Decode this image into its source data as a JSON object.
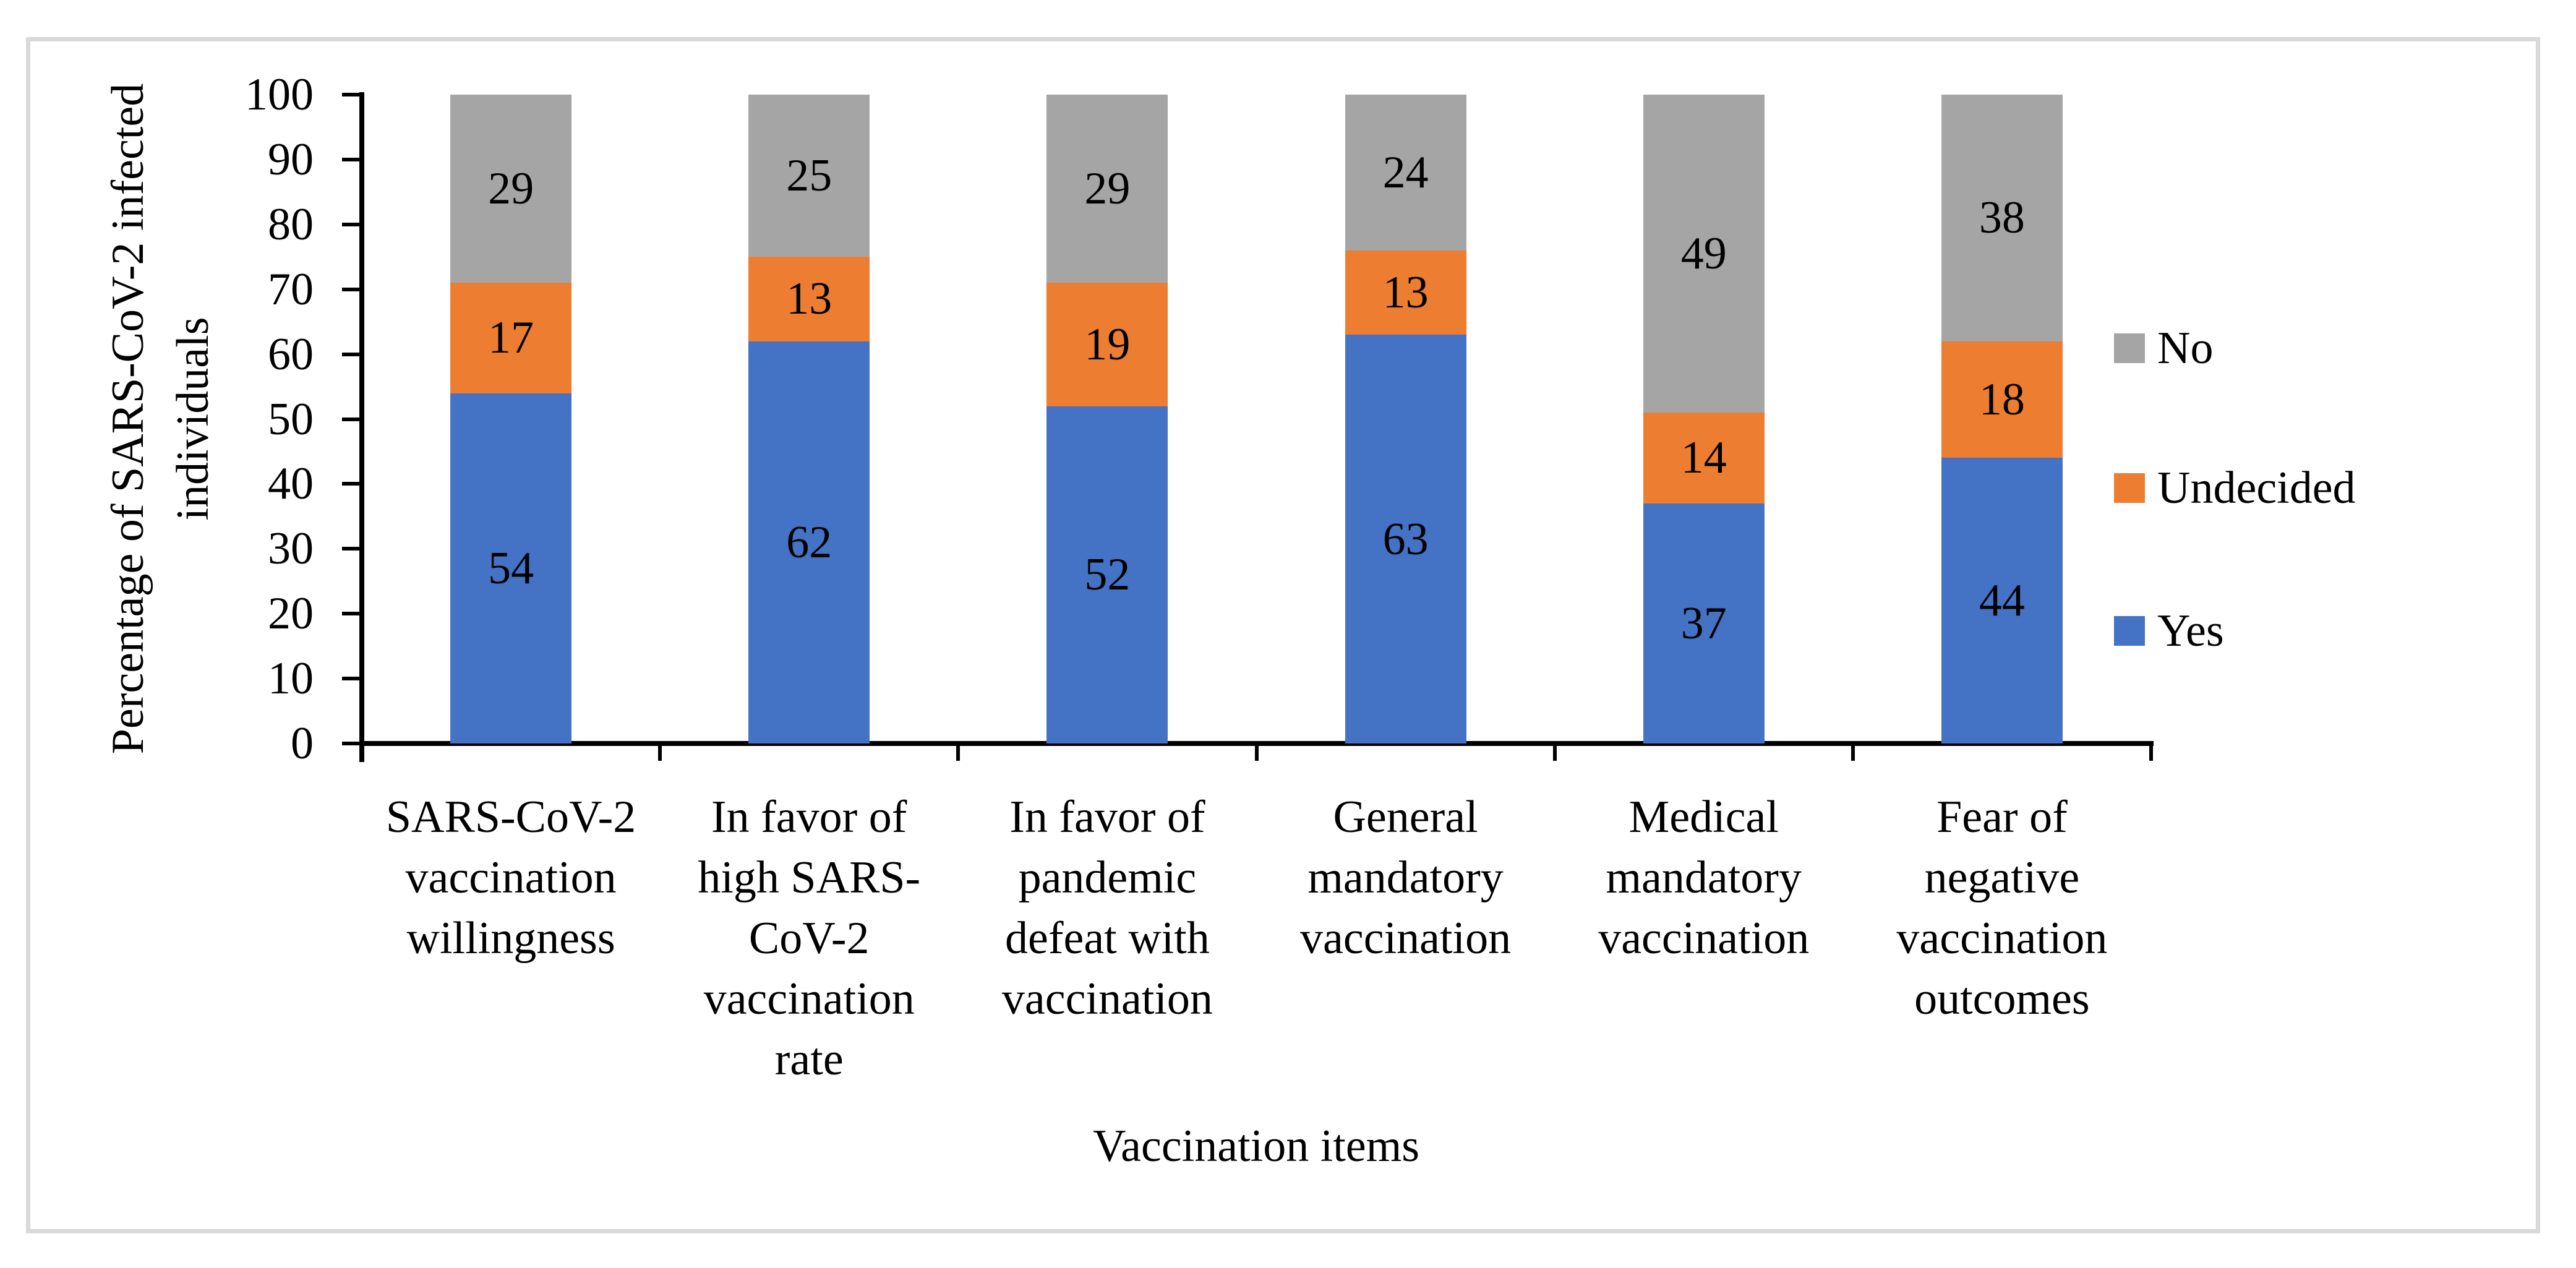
{
  "chart_data": {
    "type": "bar",
    "stacked": true,
    "title": "",
    "xlabel": "Vaccination items",
    "ylabel": "Percentage of SARS-CoV-2 infected individuals",
    "ylabel_lines": [
      "Percentage of SARS-CoV-2 infected",
      "individuals"
    ],
    "ylim": [
      0,
      100
    ],
    "yticks": [
      0,
      10,
      20,
      30,
      40,
      50,
      60,
      70,
      80,
      90,
      100
    ],
    "grid": false,
    "legend_position": "right",
    "legend_order_top_to_bottom": [
      "No",
      "Undecided",
      "Yes"
    ],
    "categories": [
      "SARS-CoV-2 vaccination willingness",
      "In favor of high SARS-CoV-2 vaccination rate",
      "In favor of pandemic defeat with vaccination",
      "General mandatory vaccination",
      "Medical mandatory vaccination",
      "Fear of negative vaccination outcomes"
    ],
    "category_lines": [
      [
        "SARS-CoV-2",
        "vaccination",
        "willingness"
      ],
      [
        "In favor of",
        "high SARS-",
        "CoV-2",
        "vaccination",
        "rate"
      ],
      [
        "In favor of",
        "pandemic",
        "defeat with",
        "vaccination"
      ],
      [
        "General",
        "mandatory",
        "vaccination"
      ],
      [
        "Medical",
        "mandatory",
        "vaccination"
      ],
      [
        "Fear of",
        "negative",
        "vaccination",
        "outcomes"
      ]
    ],
    "series": [
      {
        "name": "Yes",
        "color": "#4472C4",
        "values": [
          54,
          62,
          52,
          63,
          37,
          44
        ]
      },
      {
        "name": "Undecided",
        "color": "#ED7D31",
        "values": [
          17,
          13,
          19,
          13,
          14,
          18
        ]
      },
      {
        "name": "No",
        "color": "#A5A5A5",
        "values": [
          29,
          25,
          29,
          24,
          49,
          38
        ]
      }
    ],
    "colors": {
      "yes": "#4472C4",
      "undecided": "#ED7D31",
      "no": "#A5A5A5",
      "frame": "#D9D9D9",
      "axis": "#000000"
    }
  }
}
